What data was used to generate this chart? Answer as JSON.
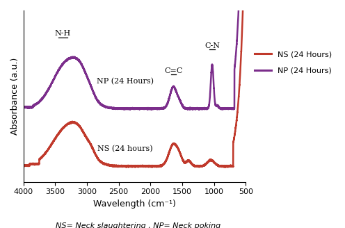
{
  "xlabel": "Wavelength (cm⁻¹)",
  "ylabel": "Absorbance (a.u.)",
  "subtitle": "NS= Neck slaughtering , NP= Neck poking",
  "xlim": [
    4000,
    500
  ],
  "ns_color": "#c0392b",
  "np_color": "#7b2d8b",
  "ns_label": "NS (24 Hours)",
  "np_label": "NP (24 Hours)",
  "ns_curve_label": "NS (24 hours)",
  "np_curve_label": "NP (24 Hours)",
  "ns_baseline": 0.05,
  "np_baseline": 0.42,
  "xticks": [
    4000,
    3500,
    3000,
    2500,
    2000,
    1500,
    1000,
    500
  ]
}
